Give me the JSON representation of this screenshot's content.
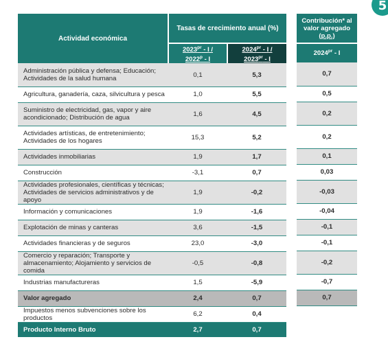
{
  "page_number": "5",
  "header": {
    "activity": "Actividad económica",
    "rates_title": "Tasas de crecimiento anual (%)",
    "rates_cols": [
      {
        "y1": "2023",
        "s1": "pr",
        "y2": "2022",
        "s2": "p",
        "q": "I"
      },
      {
        "y1": "2024",
        "s1": "pr",
        "y2": "2023",
        "s2": "pr",
        "q": "I"
      }
    ],
    "contrib_title_1": "Contribución* al",
    "contrib_title_2": "valor agregado",
    "contrib_unit": "(p.p.)",
    "contrib_col": {
      "y": "2024",
      "s": "pr",
      "q": "I"
    }
  },
  "rows": [
    {
      "l1": "Administración pública y defensa; Educación;",
      "l2": "Actividades de la salud humana",
      "prev": "0,1",
      "curr": "5,3",
      "contrib": "0,7"
    },
    {
      "l1": "Agricultura, ganadería, caza, silvicultura y pesca",
      "l2": "",
      "prev": "1,0",
      "curr": "5,5",
      "contrib": "0,5"
    },
    {
      "l1": "Suministro de electricidad, gas, vapor y aire",
      "l2": "acondicionado; Distribución de agua",
      "prev": "1,6",
      "curr": "4,5",
      "contrib": "0,2"
    },
    {
      "l1": "Actividades artísticas, de entretenimiento;",
      "l2": "Actividades de los hogares",
      "prev": "15,3",
      "curr": "5,2",
      "contrib": "0,2"
    },
    {
      "l1": "Actividades inmobiliarias",
      "l2": "",
      "prev": "1,9",
      "curr": "1,7",
      "contrib": "0,1"
    },
    {
      "l1": "Construcción",
      "l2": "",
      "prev": "-3,1",
      "curr": "0,7",
      "contrib": "0,03"
    },
    {
      "l1": "Actividades profesionales, científicas y técnicas;",
      "l2": "Actividades de servicios administrativos y de apoyo",
      "prev": "1,9",
      "curr": "-0,2",
      "contrib": "-0,03"
    },
    {
      "l1": "Información y comunicaciones",
      "l2": "",
      "prev": "1,9",
      "curr": "-1,6",
      "contrib": "-0,04"
    },
    {
      "l1": "Explotación de minas y canteras",
      "l2": "",
      "prev": "3,6",
      "curr": "-1,5",
      "contrib": "-0,1"
    },
    {
      "l1": "Actividades financieras y de seguros",
      "l2": "",
      "prev": "23,0",
      "curr": "-3,0",
      "contrib": "-0,1"
    },
    {
      "l1": "Comercio y reparación; Transporte y",
      "l2": "almacenamiento; Alojamiento y servicios de comida",
      "prev": "-0,5",
      "curr": "-0,8",
      "contrib": "-0,2"
    },
    {
      "l1": "Industrias manufactureras",
      "l2": "",
      "prev": "1,5",
      "curr": "-5,9",
      "contrib": "-0,7"
    }
  ],
  "value_added": {
    "label": "Valor agregado",
    "prev": "2,4",
    "curr": "0,7",
    "contrib": "0,7"
  },
  "taxes": {
    "label": "Impuestos menos subvenciones sobre los productos",
    "prev": "6,2",
    "curr": "0,4"
  },
  "gdp": {
    "label": "Producto Interno Bruto",
    "prev": "2,7",
    "curr": "0,7"
  }
}
